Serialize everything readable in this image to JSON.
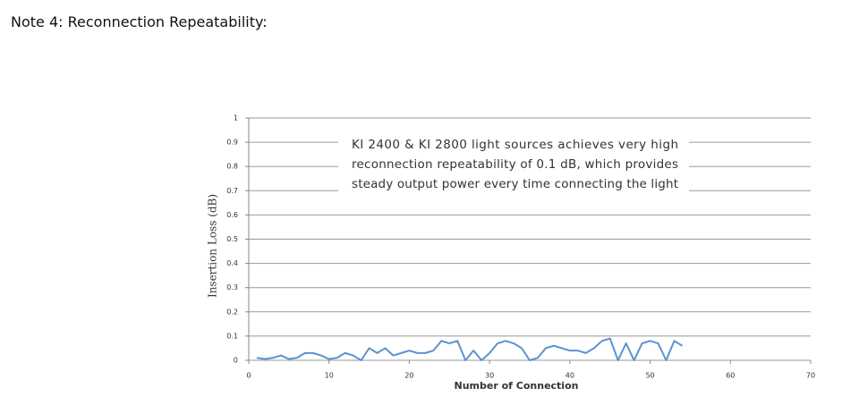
{
  "header": {
    "label": "Note 4",
    "text": ": Reconnection Repeatability:"
  },
  "chart_data": {
    "type": "line",
    "x_label": "Number of Connection",
    "y_label": "Insertion Loss (dB)",
    "annotation": [
      "KI 2400 & KI 2800 light sources achieves very high",
      "reconnection repeatability of 0.1 dB, which provides",
      "steady output power every time connecting the light"
    ],
    "x": [
      1,
      2,
      3,
      4,
      5,
      6,
      7,
      8,
      9,
      10,
      11,
      12,
      13,
      14,
      15,
      16,
      17,
      18,
      19,
      20,
      21,
      22,
      23,
      24,
      25,
      26,
      27,
      28,
      29,
      30,
      31,
      32,
      33,
      34,
      35,
      36,
      37,
      38,
      39,
      40,
      41,
      42,
      43,
      44,
      45,
      46,
      47,
      48,
      49,
      50,
      51,
      52,
      53,
      54
    ],
    "series": [
      {
        "name": "Insertion Loss",
        "color": "#5b93cf",
        "values": [
          0.01,
          0.005,
          0.01,
          0.02,
          0.005,
          0.01,
          0.03,
          0.03,
          0.02,
          0.005,
          0.01,
          0.03,
          0.02,
          0.0,
          0.05,
          0.03,
          0.05,
          0.02,
          0.03,
          0.04,
          0.03,
          0.03,
          0.04,
          0.08,
          0.07,
          0.08,
          0.0,
          0.04,
          0.0,
          0.03,
          0.07,
          0.08,
          0.07,
          0.05,
          0.0,
          0.01,
          0.05,
          0.06,
          0.05,
          0.04,
          0.04,
          0.03,
          0.05,
          0.08,
          0.09,
          0.0,
          0.07,
          0.0,
          0.07,
          0.08,
          0.07,
          0.0,
          0.08,
          0.06
        ]
      }
    ],
    "xlim": [
      0,
      70
    ],
    "xticks": [
      0,
      10,
      20,
      30,
      40,
      50,
      60,
      70
    ],
    "ylim": [
      0,
      1
    ],
    "yticks": [
      0,
      0.1,
      0.2,
      0.3,
      0.4,
      0.5,
      0.6,
      0.7,
      0.8,
      0.9,
      1
    ],
    "grid": true
  }
}
